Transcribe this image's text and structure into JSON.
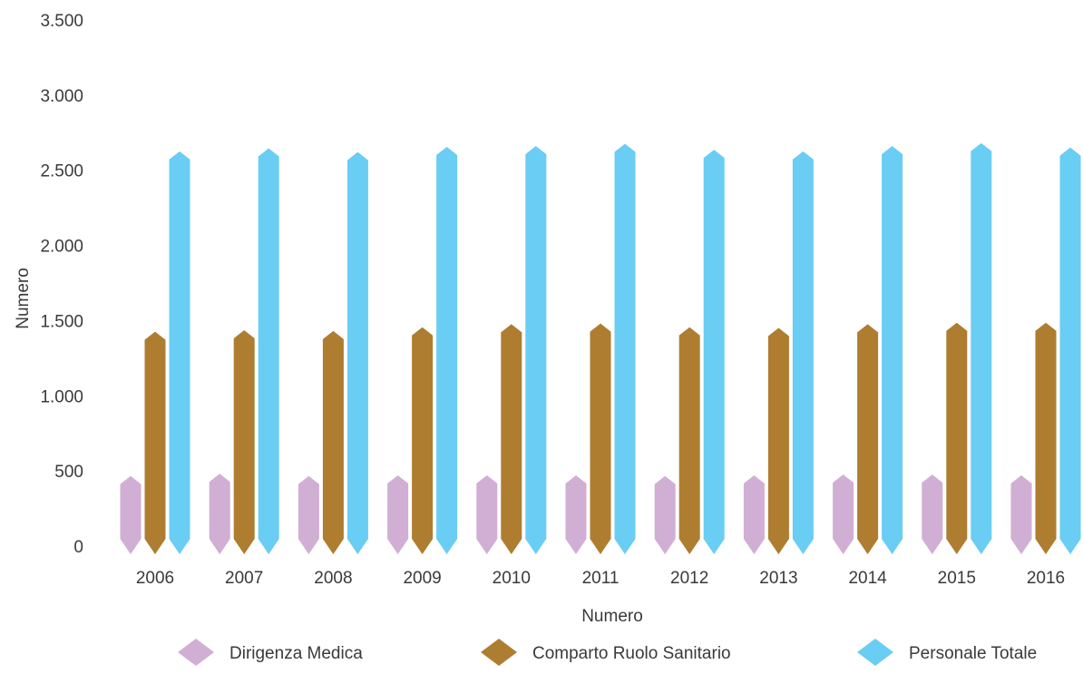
{
  "chart_data": {
    "type": "bar",
    "title": "",
    "xlabel": "Numero",
    "ylabel": "Numero",
    "ylim": [
      0,
      3500
    ],
    "yticks": [
      0,
      500,
      1000,
      1500,
      2000,
      2500,
      3000,
      3500
    ],
    "ytick_labels": [
      "0",
      "500",
      "1.000",
      "1.500",
      "2.000",
      "2.500",
      "3.000",
      "3.500"
    ],
    "categories": [
      "2006",
      "2007",
      "2008",
      "2009",
      "2010",
      "2011",
      "2012",
      "2013",
      "2014",
      "2015",
      "2016"
    ],
    "grid": false,
    "legend_position": "bottom",
    "series": [
      {
        "name": "Dirigenza Medica",
        "color": "#d1aed4",
        "values": [
          460,
          475,
          460,
          465,
          465,
          465,
          460,
          465,
          470,
          470,
          465
        ]
      },
      {
        "name": "Comparto Ruolo Sanitario",
        "color": "#ae7d30",
        "values": [
          1420,
          1430,
          1425,
          1450,
          1470,
          1475,
          1450,
          1445,
          1470,
          1480,
          1480
        ]
      },
      {
        "name": "Personale Totale",
        "color": "#69cdf4",
        "values": [
          2620,
          2640,
          2615,
          2650,
          2655,
          2670,
          2630,
          2620,
          2655,
          2675,
          2645
        ]
      }
    ]
  }
}
